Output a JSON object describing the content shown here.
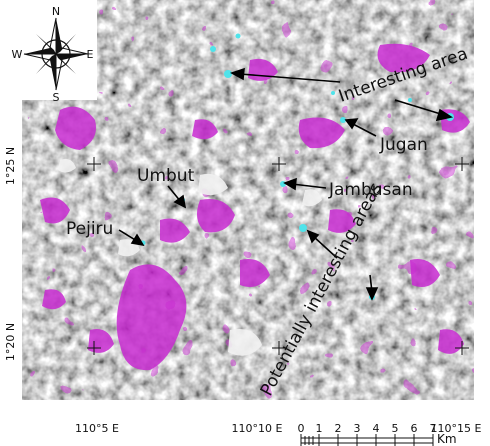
{
  "compass": {
    "n": "N",
    "s": "S",
    "e": "E",
    "w": "W"
  },
  "places": {
    "umbut": "Umbut",
    "pejiru": "Pejiru",
    "jambusan": "Jambusan",
    "jugan": "Jugan"
  },
  "annotations": {
    "interesting_area": "Interesting area",
    "potentially_interesting": "Potentially interesting areas"
  },
  "axes": {
    "lat_top": "1°25 N",
    "lat_bottom": "1°20 N",
    "lon_left": "110°5 E",
    "lon_mid": "110°10 E",
    "lon_right": "110°15 E"
  },
  "scale": {
    "ticks": [
      "0",
      "1",
      "2",
      "3",
      "4",
      "5",
      "6",
      "7"
    ],
    "unit": "Km"
  },
  "colors": {
    "classified_magenta": "#c82bd1",
    "interesting_cyan": "#4fe3ea",
    "terrain_light": "#c9c9c9",
    "terrain_dark": "#6e6e6e"
  }
}
